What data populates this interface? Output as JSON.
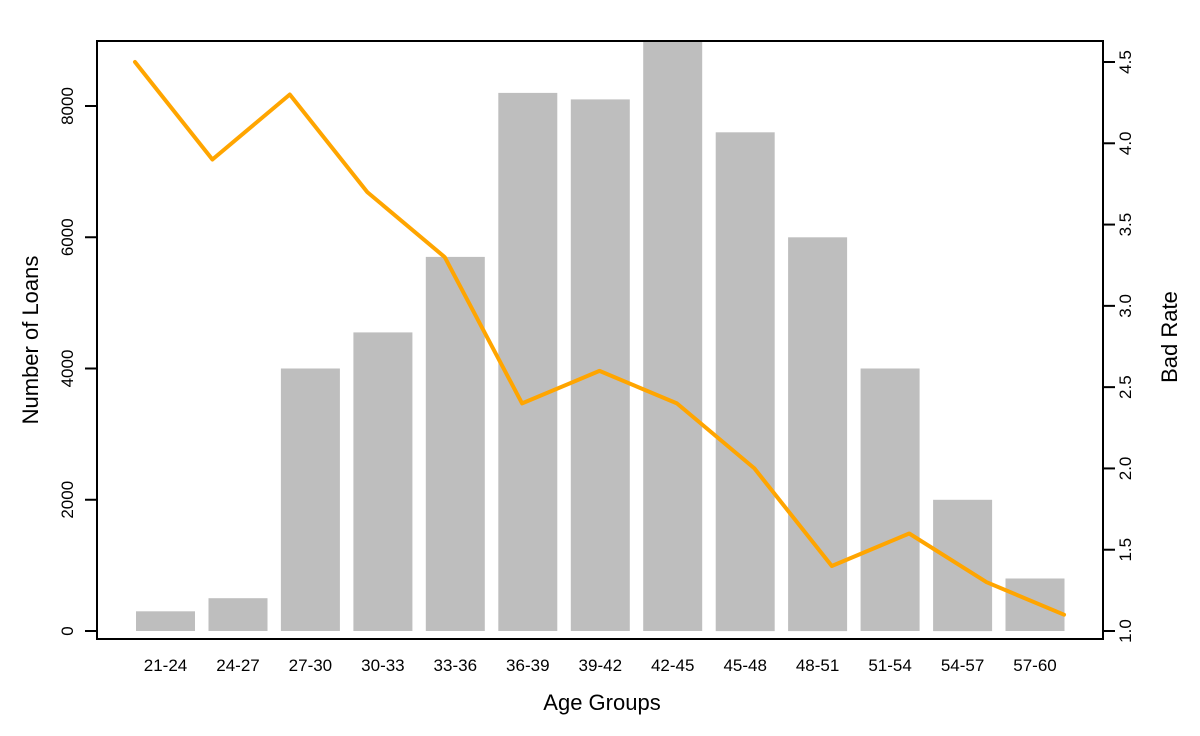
{
  "chart_data": {
    "type": "combo-bar-line",
    "title": "",
    "categories": [
      "21-24",
      "24-27",
      "27-30",
      "30-33",
      "33-36",
      "36-39",
      "39-42",
      "42-45",
      "45-48",
      "48-51",
      "51-54",
      "54-57",
      "57-60"
    ],
    "series": [
      {
        "name": "Number of Loans",
        "type": "bar",
        "axis": "left",
        "color": "#BEBEBE",
        "values": [
          300,
          500,
          4000,
          4550,
          5700,
          8200,
          8100,
          9000,
          7600,
          6000,
          4000,
          2000,
          800
        ]
      },
      {
        "name": "Bad Rate",
        "type": "line",
        "axis": "right",
        "color": "#FFA500",
        "values": [
          4.5,
          3.9,
          4.3,
          3.7,
          3.3,
          2.4,
          2.6,
          2.4,
          2.0,
          1.4,
          1.6,
          1.3,
          1.1
        ]
      }
    ],
    "xlabel": "Age Groups",
    "y_left": {
      "label": "Number of Loans",
      "ticks": [
        0,
        2000,
        4000,
        6000,
        8000
      ],
      "tick_labels": [
        "0",
        "2000",
        "4000",
        "6000",
        "8000"
      ],
      "range": [
        0,
        9000
      ]
    },
    "y_right": {
      "label": "Bad Rate",
      "ticks": [
        1.0,
        1.5,
        2.0,
        2.5,
        3.0,
        3.5,
        4.0,
        4.5
      ],
      "tick_labels": [
        "1.0",
        "1.5",
        "2.0",
        "2.5",
        "3.0",
        "3.5",
        "4.0",
        "4.5"
      ],
      "range": [
        1.0,
        4.5
      ]
    },
    "legend": "none",
    "grid": false,
    "colors": {
      "background": "#FFFFFF",
      "bar": "#BEBEBE",
      "line": "#FFA500",
      "axis": "#000000"
    }
  }
}
